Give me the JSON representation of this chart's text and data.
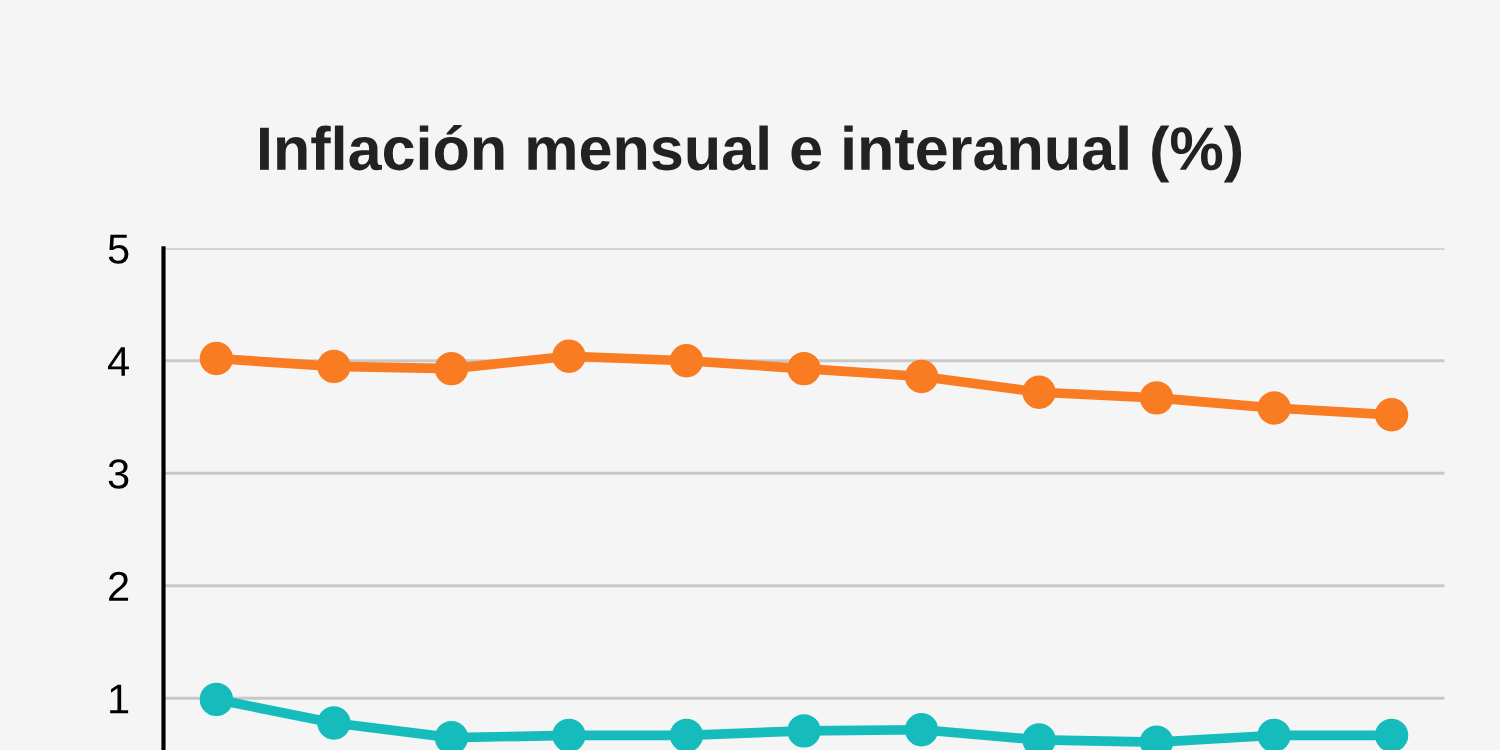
{
  "chart_data": {
    "type": "line",
    "title": "Inflación mensual e interanual (%)",
    "categories": [
      null,
      null,
      null,
      null,
      null,
      null,
      null,
      null,
      null,
      null,
      null
    ],
    "series": [
      {
        "color": "#f97b22",
        "values": [
          4.02,
          3.95,
          3.93,
          4.04,
          4.0,
          3.93,
          3.86,
          3.72,
          3.67,
          3.58,
          3.52
        ]
      },
      {
        "color": "#16bcbc",
        "values": [
          0.99,
          0.78,
          0.65,
          0.67,
          0.67,
          0.71,
          0.72,
          0.63,
          0.61,
          0.67,
          0.67
        ]
      }
    ],
    "ylim": [
      0.54,
      5
    ],
    "yticks": [
      1,
      2,
      3,
      4,
      5
    ],
    "grid": "y",
    "marker": "circle",
    "line_style": "solid",
    "legend": false
  }
}
